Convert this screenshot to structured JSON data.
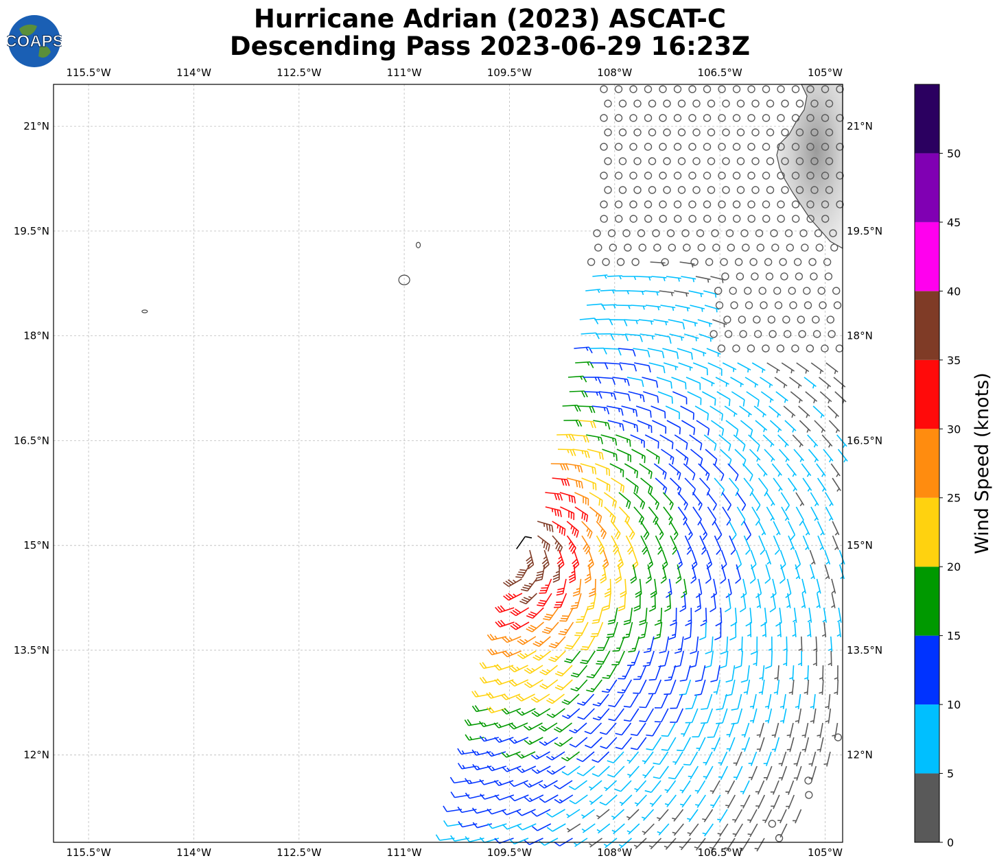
{
  "title": {
    "line1": "Hurricane Adrian (2023) ASCAT-C",
    "line2": "Descending Pass 2023-06-29 16:23Z"
  },
  "logo": {
    "text": "COAPS",
    "icon": "globe-icon"
  },
  "map": {
    "lon_range": [
      -116.0,
      -104.75
    ],
    "lat_range": [
      10.75,
      21.6
    ],
    "lon_ticks": [
      {
        "value": -115.5,
        "label": "115.5°W"
      },
      {
        "value": -114.0,
        "label": "114°W"
      },
      {
        "value": -112.5,
        "label": "112.5°W"
      },
      {
        "value": -111.0,
        "label": "111°W"
      },
      {
        "value": -109.5,
        "label": "109.5°W"
      },
      {
        "value": -108.0,
        "label": "108°W"
      },
      {
        "value": -106.5,
        "label": "106.5°W"
      },
      {
        "value": -105.0,
        "label": "105°W"
      }
    ],
    "lat_ticks": [
      {
        "value": 21.0,
        "label": "21°N"
      },
      {
        "value": 19.5,
        "label": "19.5°N"
      },
      {
        "value": 18.0,
        "label": "18°N"
      },
      {
        "value": 16.5,
        "label": "16.5°N"
      },
      {
        "value": 15.0,
        "label": "15°N"
      },
      {
        "value": 13.5,
        "label": "13.5°N"
      },
      {
        "value": 12.0,
        "label": "12°N"
      }
    ],
    "storm_center": {
      "lon": -109.4,
      "lat": 14.95
    },
    "islands": [
      {
        "name": "Socorro",
        "lon": -111.0,
        "lat": 18.8
      },
      {
        "name": "San Benedicto",
        "lon": -110.8,
        "lat": 19.3
      },
      {
        "name": "Clarion",
        "lon": -114.7,
        "lat": 18.35
      }
    ]
  },
  "colorbar": {
    "label": "Wind Speed (knots)",
    "ticks": [
      "0",
      "5",
      "10",
      "15",
      "20",
      "25",
      "30",
      "35",
      "40",
      "45",
      "50"
    ],
    "bins": [
      {
        "min": 0,
        "max": 5,
        "color": "#595959"
      },
      {
        "min": 5,
        "max": 10,
        "color": "#00bfff"
      },
      {
        "min": 10,
        "max": 15,
        "color": "#0033ff"
      },
      {
        "min": 15,
        "max": 20,
        "color": "#009900"
      },
      {
        "min": 20,
        "max": 25,
        "color": "#ffd20f"
      },
      {
        "min": 25,
        "max": 30,
        "color": "#ff8c0f"
      },
      {
        "min": 30,
        "max": 35,
        "color": "#ff0a0a"
      },
      {
        "min": 35,
        "max": 40,
        "color": "#7f3b26"
      },
      {
        "min": 40,
        "max": 45,
        "color": "#ff00ee"
      },
      {
        "min": 45,
        "max": 50,
        "color": "#8000b3"
      },
      {
        "min": 50,
        "max": 55,
        "color": "#2b0060"
      }
    ]
  }
}
